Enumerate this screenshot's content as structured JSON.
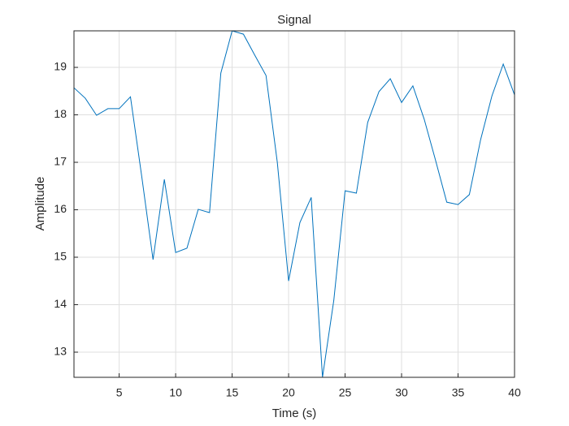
{
  "chart_data": {
    "type": "line",
    "title": "Signal",
    "xlabel": "Time (s)",
    "ylabel": "Amplitude",
    "x": [
      1,
      2,
      3,
      4,
      5,
      6,
      7,
      8,
      9,
      10,
      11,
      12,
      13,
      14,
      15,
      16,
      17,
      18,
      19,
      20,
      21,
      22,
      23,
      24,
      25,
      26,
      27,
      28,
      29,
      30,
      31,
      32,
      33,
      34,
      35,
      36,
      37,
      38,
      39,
      40
    ],
    "series": [
      {
        "name": "Signal",
        "color": "#0072bd",
        "values": [
          18.57,
          18.35,
          17.99,
          18.13,
          18.13,
          18.38,
          16.7,
          14.95,
          16.64,
          15.1,
          15.19,
          16.01,
          15.94,
          18.88,
          19.77,
          19.7,
          19.26,
          18.83,
          17.0,
          14.5,
          15.73,
          16.26,
          12.47,
          14.09,
          16.4,
          16.35,
          17.84,
          18.49,
          18.76,
          18.26,
          18.61,
          17.91,
          17.05,
          16.16,
          16.11,
          16.32,
          17.48,
          18.4,
          19.07,
          18.42
        ]
      }
    ],
    "xlim": [
      1,
      40
    ],
    "xticks": [
      5,
      10,
      15,
      20,
      25,
      30,
      35,
      40
    ],
    "ylim": [
      12.47,
      19.77
    ],
    "yticks": [
      13,
      14,
      15,
      16,
      17,
      18,
      19
    ],
    "grid": true
  }
}
